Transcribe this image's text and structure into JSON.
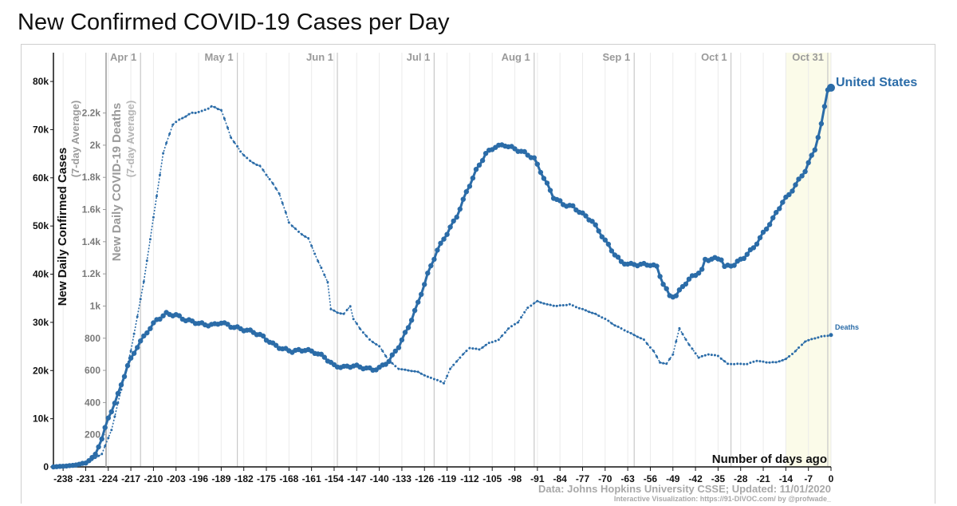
{
  "title": "New Confirmed COVID-19 Cases per Day",
  "colors": {
    "cases": "#2b6ca8",
    "deaths": "#2b6ca8",
    "grid": "#c8c8c8",
    "highlight": "#fbfbe9",
    "text": "#111111",
    "muted": "#9a9a9a"
  },
  "chart_data": {
    "type": "line",
    "title": "New Confirmed COVID-19 Cases per Day",
    "xlabel": "Number of days ago",
    "ylabel": "New Daily Confirmed Cases",
    "ylabel_sub": "(7-day Average)",
    "y2label": "New Daily COVID-19 Deaths",
    "y2label_sub": "(7-day Average)",
    "xlim": [
      -241,
      0
    ],
    "ylim": [
      0,
      82000
    ],
    "y2lim": [
      0,
      2456
    ],
    "grid": true,
    "x_ticks": [
      -238,
      -231,
      -224,
      -217,
      -210,
      -203,
      -196,
      -189,
      -182,
      -175,
      -168,
      -161,
      -154,
      -147,
      -140,
      -133,
      -126,
      -119,
      -112,
      -105,
      -98,
      -91,
      -84,
      -77,
      -70,
      -63,
      -56,
      -49,
      -42,
      -35,
      -28,
      -21,
      -14,
      -7,
      0
    ],
    "y_ticks": [
      {
        "value": 0,
        "label": "0"
      },
      {
        "value": 10000,
        "label": "10k"
      },
      {
        "value": 20000,
        "label": "20k"
      },
      {
        "value": 30000,
        "label": "30k"
      },
      {
        "value": 40000,
        "label": "40k"
      },
      {
        "value": 50000,
        "label": "50k"
      },
      {
        "value": 60000,
        "label": "60k"
      },
      {
        "value": 70000,
        "label": "70k"
      },
      {
        "value": 80000,
        "label": "80k"
      }
    ],
    "y2_ticks": [
      {
        "value": 200,
        "label": "200"
      },
      {
        "value": 400,
        "label": "400"
      },
      {
        "value": 600,
        "label": "600"
      },
      {
        "value": 800,
        "label": "800"
      },
      {
        "value": 1000,
        "label": "1k"
      },
      {
        "value": 1200,
        "label": "1.2k"
      },
      {
        "value": 1400,
        "label": "1.4k"
      },
      {
        "value": 1600,
        "label": "1.6k"
      },
      {
        "value": 1800,
        "label": "1.8k"
      },
      {
        "value": 2000,
        "label": "2k"
      },
      {
        "value": 2200,
        "label": "2.2k"
      }
    ],
    "month_markers": [
      {
        "label": "Apr 1",
        "x": -214
      },
      {
        "label": "May 1",
        "x": -184
      },
      {
        "label": "Jun 1",
        "x": -153
      },
      {
        "label": "Jul 1",
        "x": -123
      },
      {
        "label": "Aug 1",
        "x": -92
      },
      {
        "label": "Sep 1",
        "x": -61
      },
      {
        "label": "Oct 1",
        "x": -31
      },
      {
        "label": "Oct 31",
        "x": -1
      }
    ],
    "highlight_range": [
      -14,
      0
    ],
    "series": [
      {
        "name": "United States",
        "axis": "cases",
        "style": "thick",
        "points": [
          [
            -241,
            0
          ],
          [
            -235,
            300
          ],
          [
            -231,
            800
          ],
          [
            -228,
            2500
          ],
          [
            -226,
            6000
          ],
          [
            -224,
            10000
          ],
          [
            -221,
            15000
          ],
          [
            -218,
            21000
          ],
          [
            -215,
            25000
          ],
          [
            -212,
            28000
          ],
          [
            -209,
            30500
          ],
          [
            -206,
            31800
          ],
          [
            -203,
            31500
          ],
          [
            -200,
            30500
          ],
          [
            -197,
            30000
          ],
          [
            -194,
            29500
          ],
          [
            -191,
            29500
          ],
          [
            -189,
            30000
          ],
          [
            -186,
            29200
          ],
          [
            -182,
            28500
          ],
          [
            -179,
            28000
          ],
          [
            -176,
            27000
          ],
          [
            -173,
            25500
          ],
          [
            -170,
            24500
          ],
          [
            -167,
            24000
          ],
          [
            -163,
            24300
          ],
          [
            -160,
            23800
          ],
          [
            -157,
            22800
          ],
          [
            -154,
            21000
          ],
          [
            -151,
            20700
          ],
          [
            -148,
            21000
          ],
          [
            -145,
            20600
          ],
          [
            -142,
            20200
          ],
          [
            -140,
            20500
          ],
          [
            -137,
            22000
          ],
          [
            -134,
            25000
          ],
          [
            -131,
            29000
          ],
          [
            -128,
            34000
          ],
          [
            -125,
            40000
          ],
          [
            -122,
            45000
          ],
          [
            -119,
            48500
          ],
          [
            -116,
            52000
          ],
          [
            -113,
            57000
          ],
          [
            -110,
            61500
          ],
          [
            -107,
            65000
          ],
          [
            -104,
            66500
          ],
          [
            -101,
            66800
          ],
          [
            -98,
            66000
          ],
          [
            -95,
            65200
          ],
          [
            -92,
            64000
          ],
          [
            -89,
            60000
          ],
          [
            -86,
            56000
          ],
          [
            -83,
            54500
          ],
          [
            -80,
            54000
          ],
          [
            -77,
            52500
          ],
          [
            -74,
            51000
          ],
          [
            -71,
            48000
          ],
          [
            -68,
            45000
          ],
          [
            -65,
            42500
          ],
          [
            -62,
            42000
          ],
          [
            -59,
            42000
          ],
          [
            -56,
            42000
          ],
          [
            -54,
            41500
          ],
          [
            -52,
            38000
          ],
          [
            -50,
            35500
          ],
          [
            -48,
            35500
          ],
          [
            -46,
            37500
          ],
          [
            -43,
            39500
          ],
          [
            -40,
            40800
          ],
          [
            -39,
            43000
          ],
          [
            -36,
            43200
          ],
          [
            -34,
            43200
          ],
          [
            -33,
            41500
          ],
          [
            -30,
            42000
          ],
          [
            -27,
            43500
          ],
          [
            -24,
            45500
          ],
          [
            -21,
            48500
          ],
          [
            -18,
            51500
          ],
          [
            -15,
            55000
          ],
          [
            -13,
            56500
          ],
          [
            -10,
            59500
          ],
          [
            -8,
            61500
          ],
          [
            -5,
            66000
          ],
          [
            -3,
            71000
          ],
          [
            -1,
            78500
          ],
          [
            0,
            78700
          ]
        ]
      },
      {
        "name": "Deaths",
        "axis": "deaths",
        "style": "dotted",
        "points": [
          [
            -241,
            0
          ],
          [
            -231,
            20
          ],
          [
            -226,
            80
          ],
          [
            -223,
            230
          ],
          [
            -220,
            480
          ],
          [
            -217,
            720
          ],
          [
            -213,
            1150
          ],
          [
            -210,
            1550
          ],
          [
            -207,
            1950
          ],
          [
            -204,
            2130
          ],
          [
            -201,
            2170
          ],
          [
            -198,
            2200
          ],
          [
            -195,
            2210
          ],
          [
            -192,
            2240
          ],
          [
            -189,
            2220
          ],
          [
            -186,
            2050
          ],
          [
            -183,
            1960
          ],
          [
            -180,
            1900
          ],
          [
            -177,
            1870
          ],
          [
            -174,
            1790
          ],
          [
            -171,
            1700
          ],
          [
            -168,
            1520
          ],
          [
            -165,
            1460
          ],
          [
            -162,
            1420
          ],
          [
            -159,
            1280
          ],
          [
            -156,
            1150
          ],
          [
            -155,
            980
          ],
          [
            -153,
            960
          ],
          [
            -151,
            950
          ],
          [
            -149,
            1000
          ],
          [
            -148,
            920
          ],
          [
            -146,
            860
          ],
          [
            -143,
            790
          ],
          [
            -140,
            750
          ],
          [
            -137,
            660
          ],
          [
            -134,
            610
          ],
          [
            -131,
            600
          ],
          [
            -128,
            590
          ],
          [
            -125,
            560
          ],
          [
            -122,
            540
          ],
          [
            -120,
            520
          ],
          [
            -118,
            610
          ],
          [
            -115,
            680
          ],
          [
            -112,
            740
          ],
          [
            -109,
            730
          ],
          [
            -106,
            770
          ],
          [
            -103,
            790
          ],
          [
            -100,
            860
          ],
          [
            -97,
            900
          ],
          [
            -94,
            990
          ],
          [
            -91,
            1030
          ],
          [
            -88,
            1010
          ],
          [
            -85,
            1000
          ],
          [
            -81,
            1010
          ],
          [
            -77,
            980
          ],
          [
            -73,
            950
          ],
          [
            -70,
            920
          ],
          [
            -67,
            880
          ],
          [
            -64,
            850
          ],
          [
            -61,
            820
          ],
          [
            -58,
            790
          ],
          [
            -55,
            720
          ],
          [
            -53,
            650
          ],
          [
            -51,
            640
          ],
          [
            -49,
            700
          ],
          [
            -47,
            860
          ],
          [
            -44,
            760
          ],
          [
            -41,
            680
          ],
          [
            -38,
            700
          ],
          [
            -35,
            690
          ],
          [
            -32,
            640
          ],
          [
            -29,
            640
          ],
          [
            -26,
            640
          ],
          [
            -23,
            660
          ],
          [
            -20,
            650
          ],
          [
            -17,
            650
          ],
          [
            -14,
            670
          ],
          [
            -11,
            720
          ],
          [
            -8,
            780
          ],
          [
            -5,
            800
          ],
          [
            -3,
            810
          ],
          [
            0,
            820
          ]
        ]
      }
    ],
    "annotations": {
      "series_label": "United States",
      "deaths_label": "Deaths",
      "source": "Data: Johns Hopkins University CSSE; Updated: 11/01/2020",
      "credit": "Interactive Visualization: https://91-DIVOC.com/ by @profwade_"
    }
  }
}
